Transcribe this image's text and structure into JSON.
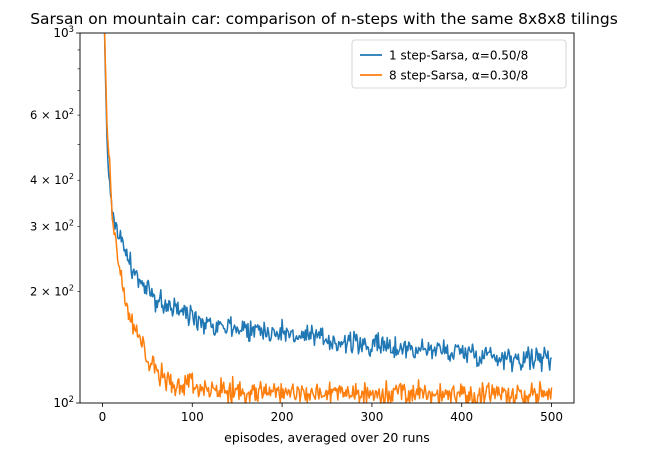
{
  "chart_data": {
    "type": "line",
    "title": "Sarsan on mountain car: comparison of n-steps with the same 8x8x8 tilings",
    "xlabel": "episodes, averaged over 20 runs",
    "ylabel": "",
    "xlim": [
      -25,
      525
    ],
    "ylim": [
      100,
      1000
    ],
    "yscale": "log",
    "grid": false,
    "legend_position": "top-right",
    "x_ticks": [
      0,
      100,
      200,
      300,
      400,
      500
    ],
    "x_tick_labels": [
      "0",
      "100",
      "200",
      "300",
      "400",
      "500"
    ],
    "y_major_ticks": [
      100,
      1000
    ],
    "y_major_tick_labels": [
      "10",
      "10"
    ],
    "y_major_tick_exponents": [
      "2",
      "3"
    ],
    "y_minor_ticks": [
      200,
      300,
      400,
      600
    ],
    "y_minor_tick_labels": [
      "2 × 10",
      "3 × 10",
      "4 × 10",
      "6 × 10"
    ],
    "y_minor_tick_exponents": [
      "2",
      "2",
      "2",
      "2"
    ],
    "y_unlabeled_minor_ticks": [
      500,
      700,
      800,
      900
    ],
    "series": [
      {
        "name": "1 step-Sarsa, α=0.50/8",
        "color": "#1f77b4",
        "x": [
          1,
          3,
          5,
          8,
          10,
          15,
          20,
          25,
          30,
          40,
          50,
          60,
          70,
          80,
          100,
          120,
          150,
          200,
          250,
          300,
          350,
          400,
          450,
          500
        ],
        "y": [
          1400,
          800,
          500,
          400,
          340,
          300,
          280,
          260,
          240,
          215,
          200,
          190,
          185,
          180,
          172,
          165,
          160,
          155,
          148,
          143,
          140,
          138,
          133,
          132
        ],
        "noise": 0.035
      },
      {
        "name": "8 step-Sarsa, α=0.30/8",
        "color": "#ff7f0e",
        "x": [
          1,
          3,
          5,
          8,
          10,
          15,
          20,
          25,
          30,
          40,
          50,
          60,
          70,
          80,
          100,
          120,
          150,
          200,
          250,
          300,
          350,
          400,
          450,
          500
        ],
        "y": [
          1500,
          900,
          550,
          420,
          340,
          270,
          220,
          190,
          170,
          150,
          133,
          122,
          116,
          112,
          110,
          108,
          107,
          107,
          106,
          106,
          106,
          106,
          106,
          106
        ],
        "noise": 0.035
      }
    ]
  }
}
